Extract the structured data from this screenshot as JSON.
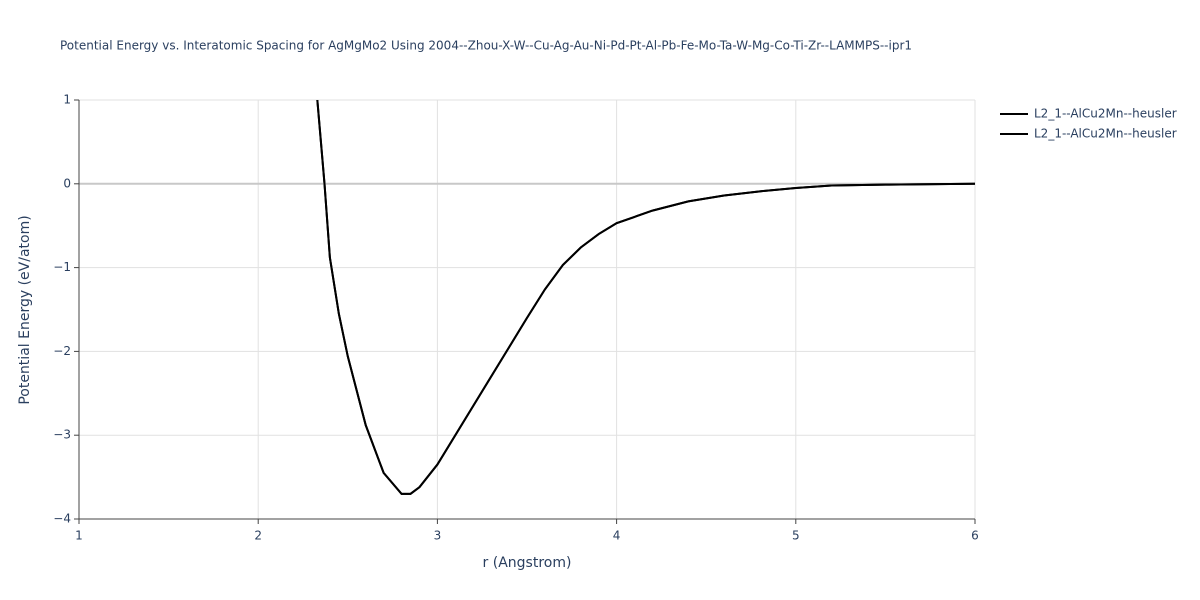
{
  "chart_data": {
    "type": "line",
    "title": "Potential Energy vs. Interatomic Spacing for AgMgMo2 Using 2004--Zhou-X-W--Cu-Ag-Au-Ni-Pd-Pt-Al-Pb-Fe-Mo-Ta-W-Mg-Co-Ti-Zr--LAMMPS--ipr1",
    "x_label": "r (Angstrom)",
    "y_label": "Potential Energy (eV/atom)",
    "x": [
      2.33,
      2.37,
      2.4,
      2.45,
      2.5,
      2.6,
      2.7,
      2.8,
      2.85,
      2.9,
      3.0,
      3.2,
      3.4,
      3.5,
      3.6,
      3.7,
      3.8,
      3.9,
      4.0,
      4.2,
      4.4,
      4.6,
      4.8,
      5.0,
      5.2,
      5.5,
      6.0
    ],
    "series": [
      {
        "name": "L2_1--AlCu2Mn--heusler",
        "color": "#000000",
        "values": [
          1,
          0,
          -0.88,
          -1.55,
          -2.06,
          -2.88,
          -3.45,
          -3.7,
          -3.7,
          -3.62,
          -3.35,
          -2.65,
          -1.95,
          -1.6,
          -1.26,
          -0.97,
          -0.76,
          -0.6,
          -0.47,
          -0.32,
          -0.21,
          -0.14,
          -0.09,
          -0.05,
          -0.02,
          -0.01,
          0
        ]
      },
      {
        "name": "L2_1--AlCu2Mn--heusler",
        "color": "#000000",
        "values": [
          1,
          0,
          -0.88,
          -1.55,
          -2.06,
          -2.88,
          -3.45,
          -3.7,
          -3.7,
          -3.62,
          -3.35,
          -2.65,
          -1.95,
          -1.6,
          -1.26,
          -0.97,
          -0.76,
          -0.6,
          -0.47,
          -0.32,
          -0.21,
          -0.14,
          -0.09,
          -0.05,
          -0.02,
          -0.01,
          0
        ]
      }
    ],
    "xlim": [
      1,
      6
    ],
    "xticks": [
      1,
      2,
      3,
      4,
      5,
      6
    ],
    "ylim": [
      -4,
      1
    ],
    "yticks": [
      {
        "value": -4,
        "label": "−4"
      },
      {
        "value": -3,
        "label": "−3"
      },
      {
        "value": -2,
        "label": "−2"
      },
      {
        "value": -1,
        "label": "−1"
      },
      0,
      1
    ],
    "grid": true,
    "legend": "top-right"
  }
}
